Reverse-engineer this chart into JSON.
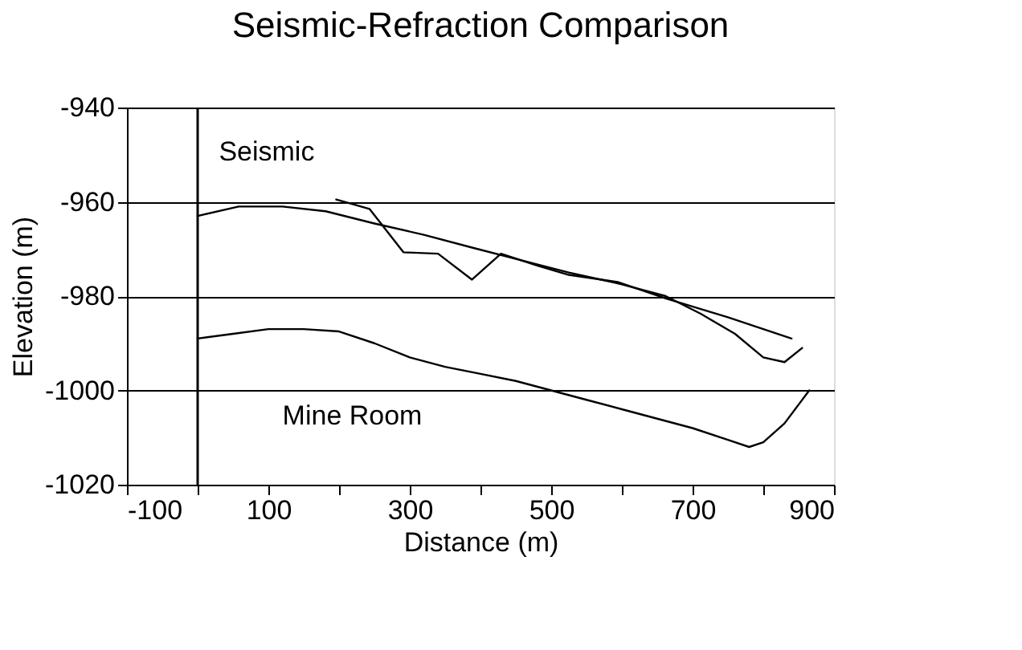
{
  "chart_data": {
    "type": "line",
    "title": "Seismic-Refraction Comparison",
    "xlabel": "Distance (m)",
    "ylabel": "Elevation (m)",
    "xlim": [
      -100,
      900
    ],
    "ylim": [
      -1020,
      -940
    ],
    "xticks": [
      -100,
      {
        "value": 0,
        "label": null
      },
      100,
      {
        "value": 200,
        "label": null
      },
      300,
      {
        "value": 400,
        "label": null
      },
      500,
      {
        "value": 600,
        "label": null
      },
      700,
      {
        "value": 800,
        "label": null
      },
      900
    ],
    "yticks": [
      -1020,
      -1000,
      -980,
      -960,
      -940
    ],
    "grid": "y",
    "legend": false,
    "marker": "none",
    "line_style": "solid",
    "ref_lines": [
      {
        "axis": "x",
        "value": 0,
        "color": "#000000"
      }
    ],
    "series": [
      {
        "name": "Seismic",
        "color": "#000000",
        "x": [
          0,
          58,
          120,
          181,
          250,
          320,
          388,
          460,
          525,
          600,
          662,
          711,
          760,
          800,
          830,
          855
        ],
        "values": [
          -963,
          -961,
          -961,
          -962,
          -964.6,
          -967,
          -969.7,
          -972.5,
          -975,
          -977.5,
          -980,
          -983.7,
          -988,
          -993,
          -994,
          -991
        ]
      },
      {
        "color": "#000000",
        "x": [
          196,
          243,
          291,
          340,
          388,
          429,
          480,
          525,
          594,
          662,
          750,
          840
        ],
        "values": [
          -959.5,
          -961.5,
          -970.7,
          -971,
          -976.5,
          -971,
          -973.5,
          -975.5,
          -977,
          -980.5,
          -984.5,
          -989
        ]
      },
      {
        "name": "Mine Room",
        "color": "#000000",
        "x": [
          0,
          50,
          100,
          150,
          200,
          250,
          300,
          350,
          400,
          450,
          500,
          550,
          600,
          650,
          700,
          750,
          780,
          800,
          830,
          850,
          865
        ],
        "values": [
          -989,
          -988,
          -987,
          -987,
          -987.5,
          -990,
          -993,
          -995,
          -996.5,
          -998,
          -1000,
          -1002,
          -1004,
          -1006,
          -1008,
          -1010.5,
          -1012,
          -1011,
          -1007,
          -1003,
          -1000
        ]
      }
    ]
  }
}
